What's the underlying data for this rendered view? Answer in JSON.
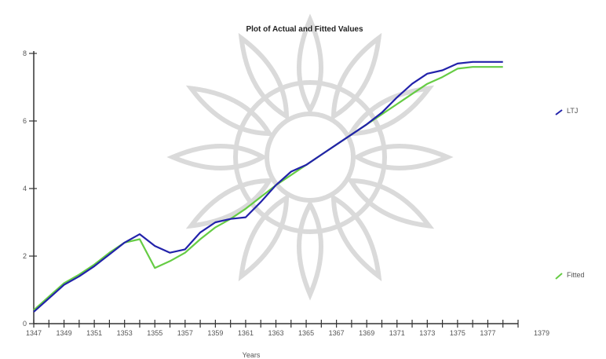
{
  "chart_data": {
    "type": "line",
    "title": "Plot of Actual and Fitted Values",
    "xlabel": "Years",
    "ylabel": "",
    "x": [
      1347,
      1348,
      1349,
      1350,
      1351,
      1352,
      1353,
      1354,
      1355,
      1356,
      1357,
      1358,
      1359,
      1360,
      1361,
      1362,
      1363,
      1364,
      1365,
      1366,
      1367,
      1368,
      1369,
      1370,
      1371,
      1372,
      1373,
      1374,
      1375,
      1376,
      1377,
      1378
    ],
    "xlim": [
      1347,
      1379
    ],
    "ylim": [
      0,
      8
    ],
    "y_ticks": [
      0,
      2,
      4,
      6,
      8
    ],
    "x_tick_labels": [
      "1347",
      "1349",
      "1351",
      "1353",
      "1355",
      "1357",
      "1359",
      "1361",
      "1363",
      "1365",
      "1367",
      "1369",
      "1371",
      "1373",
      "1375",
      "1377",
      "1379"
    ],
    "series": [
      {
        "name": "LTJ",
        "color": "#2222aa",
        "values": [
          0.35,
          0.75,
          1.15,
          1.4,
          1.7,
          2.05,
          2.4,
          2.65,
          2.3,
          2.1,
          2.2,
          2.7,
          3.0,
          3.1,
          3.15,
          3.6,
          4.1,
          4.5,
          4.7,
          5.0,
          5.3,
          5.6,
          5.9,
          6.25,
          6.7,
          7.1,
          7.4,
          7.5,
          7.7,
          7.75,
          7.75,
          7.75
        ]
      },
      {
        "name": "Fitted",
        "color": "#66cc44",
        "values": [
          0.4,
          0.8,
          1.2,
          1.45,
          1.75,
          2.1,
          2.4,
          2.5,
          1.65,
          1.85,
          2.1,
          2.5,
          2.85,
          3.1,
          3.4,
          3.75,
          4.1,
          4.4,
          4.7,
          5.0,
          5.3,
          5.6,
          5.9,
          6.2,
          6.5,
          6.8,
          7.1,
          7.3,
          7.55,
          7.6,
          7.6,
          7.6
        ]
      }
    ],
    "legend_position": "right",
    "grid": false
  }
}
